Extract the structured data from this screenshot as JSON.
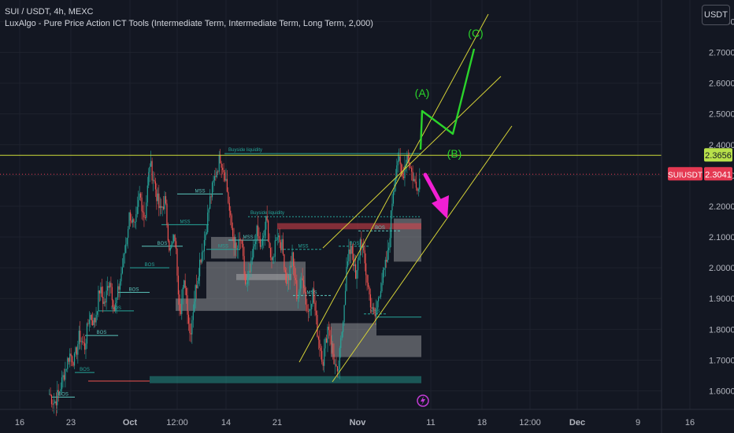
{
  "header": {
    "symbol_line": "SUI / USDT, 4h, MEXC",
    "indicator_line": "LuxAlgo - Pure Price Action ICT Tools (Intermediate Term, Intermediate Term, Long Term, 2,000)"
  },
  "currency_button": "USDT",
  "colors": {
    "background": "#131722",
    "grid": "#1e222d",
    "axis_text": "#b2b5be",
    "up_candle": "#26a69a",
    "down_candle": "#ef5350",
    "level_line": "#cddc39",
    "channel": "#d4d137",
    "wave": "#2bd42b",
    "arrow": "#f21fd3",
    "price_badge": "#e53952",
    "level_badge": "#b8e04a"
  },
  "icons": {
    "event_marker": "lightning-icon"
  },
  "chart_data": {
    "type": "candlestick",
    "symbol": "SUI / USDT",
    "timeframe": "4h",
    "exchange": "MEXC",
    "ylim": [
      1.54,
      2.87
    ],
    "y_ticks": [
      "2.8000",
      "2.7000",
      "2.6000",
      "2.5000",
      "2.4000",
      "2.3000",
      "2.2000",
      "2.1000",
      "2.0000",
      "1.9000",
      "1.8000",
      "1.7000",
      "1.6000"
    ],
    "x_ticks": [
      "16",
      "23",
      "Oct",
      "12:00",
      "14",
      "21",
      "Nov",
      "11",
      "18",
      "12:00",
      "Dec",
      "9",
      "16"
    ],
    "x_ticks_bold": [
      "Oct",
      "Nov",
      "Dec"
    ],
    "horizontal_level": {
      "value": 2.3656,
      "label": "2.3656"
    },
    "last_price": {
      "value": 2.3041,
      "symbol_label": "SUIUSDT",
      "label": "2.3041"
    },
    "structure_labels": [
      "BOS",
      "BOS",
      "BOS",
      "BOS",
      "BOS",
      "BOS",
      "BOS",
      "MSS",
      "MSS",
      "MSS",
      "MSS",
      "MSS",
      "MSS",
      "BOS",
      "BOS",
      "MSS"
    ],
    "liquidity_labels": [
      "Buyside liquidity",
      "Buyside liquidity"
    ],
    "wave_labels": [
      "(A)",
      "(B)",
      "(C)"
    ],
    "price_path": [
      [
        1.59,
        1.56,
        1.6,
        1.66,
        1.72,
        1.7,
        1.78,
        1.74,
        1.85,
        1.82,
        1.93,
        1.88,
        1.97,
        1.86,
        1.95,
        2.05,
        2.18,
        2.12,
        2.24,
        2.16,
        2.34,
        2.27,
        2.18,
        2.22,
        2.05,
        2.1,
        1.86,
        1.96,
        1.78,
        1.92,
        2.02
      ],
      [
        2.02,
        2.1,
        2.22,
        2.3,
        2.36,
        2.3,
        2.15,
        2.05,
        2.09,
        1.93,
        2.0,
        2.12,
        2.06,
        2.16,
        2.0,
        2.12,
        2.07,
        1.95,
        2.03,
        1.9,
        1.98,
        1.85,
        1.92,
        1.78,
        1.7,
        1.82,
        1.72
      ],
      [
        1.72,
        1.64,
        1.8,
        2.0,
        2.08,
        1.95,
        2.1,
        2.0,
        1.9,
        1.83,
        1.92,
        1.98,
        2.05,
        2.25,
        2.36,
        2.29,
        2.37,
        2.31,
        2.26,
        2.3
      ]
    ]
  }
}
